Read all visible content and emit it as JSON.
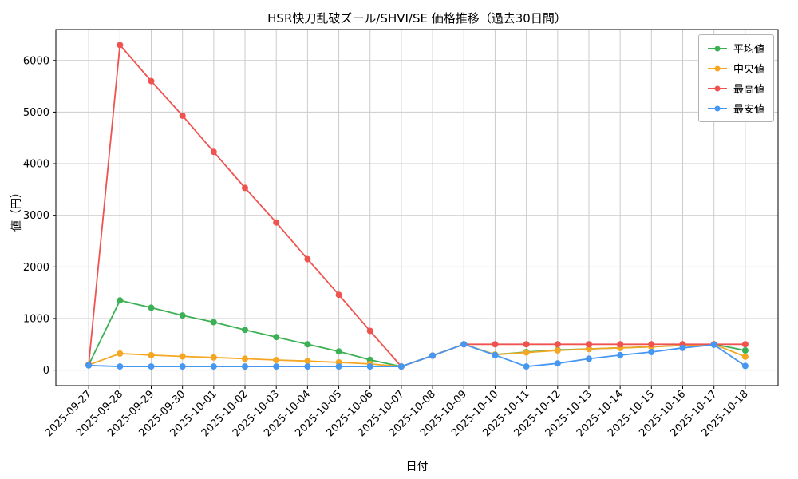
{
  "chart_data": {
    "type": "line",
    "title": "HSR快刀乱破ズール/SHVI/SE 価格推移（過去30日間）",
    "xlabel": "日付",
    "ylabel": "値（円）",
    "grid": true,
    "legend_position": "upper right",
    "ylim": [
      -300,
      6600
    ],
    "yticks": [
      0,
      1000,
      2000,
      3000,
      4000,
      5000,
      6000
    ],
    "categories": [
      "2025-09-27",
      "2025-09-28",
      "2025-09-29",
      "2025-09-30",
      "2025-10-01",
      "2025-10-02",
      "2025-10-03",
      "2025-10-04",
      "2025-10-05",
      "2025-10-06",
      "2025-10-07",
      "2025-10-08",
      "2025-10-09",
      "2025-10-10",
      "2025-10-11",
      "2025-10-12",
      "2025-10-13",
      "2025-10-14",
      "2025-10-15",
      "2025-10-16",
      "2025-10-17",
      "2025-10-18"
    ],
    "series": [
      {
        "name": "平均値",
        "color": "#3cb054",
        "values": [
          100,
          1350,
          1210,
          1060,
          930,
          780,
          640,
          500,
          360,
          200,
          70,
          280,
          500,
          300,
          350,
          390,
          410,
          430,
          450,
          480,
          500,
          380
        ]
      },
      {
        "name": "中央値",
        "color": "#f5a623",
        "values": [
          100,
          320,
          290,
          265,
          245,
          220,
          195,
          175,
          150,
          120,
          70,
          280,
          500,
          300,
          340,
          380,
          410,
          430,
          450,
          480,
          500,
          260
        ]
      },
      {
        "name": "最高値",
        "color": "#ef5350",
        "values": [
          100,
          6300,
          5600,
          4930,
          4230,
          3530,
          2860,
          2150,
          1460,
          760,
          70,
          280,
          500,
          500,
          500,
          500,
          500,
          500,
          500,
          500,
          500,
          500
        ]
      },
      {
        "name": "最安値",
        "color": "#4697f2",
        "values": [
          90,
          70,
          70,
          70,
          70,
          70,
          70,
          70,
          70,
          70,
          70,
          280,
          500,
          290,
          70,
          130,
          220,
          290,
          350,
          430,
          490,
          80
        ]
      }
    ]
  }
}
